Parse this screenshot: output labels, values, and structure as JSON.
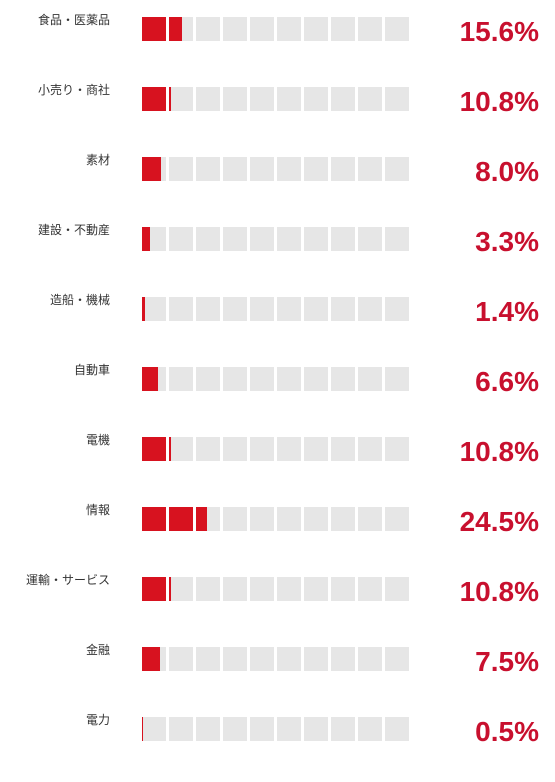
{
  "chart_data": {
    "type": "bar",
    "title": "",
    "xlabel": "",
    "ylabel": "",
    "xlim": [
      0,
      100
    ],
    "segments": 10,
    "colors": {
      "fill": "#d7121f",
      "track": "#e6e6e6",
      "value_text": "#c8102e",
      "label_text": "#333333"
    },
    "categories": [
      "食品・医薬品",
      "小売り・商社",
      "素材",
      "建設・不動産",
      "造船・機械",
      "自動車",
      "電機",
      "情報",
      "運輸・サービス",
      "金融",
      "電力"
    ],
    "values": [
      15.6,
      10.8,
      8.0,
      3.3,
      1.4,
      6.6,
      10.8,
      24.5,
      10.8,
      7.5,
      0.5
    ],
    "value_labels": [
      "15.6%",
      "10.8%",
      "8.0%",
      "3.3%",
      "1.4%",
      "6.6%",
      "10.8%",
      "24.5%",
      "10.8%",
      "7.5%",
      "0.5%"
    ]
  }
}
